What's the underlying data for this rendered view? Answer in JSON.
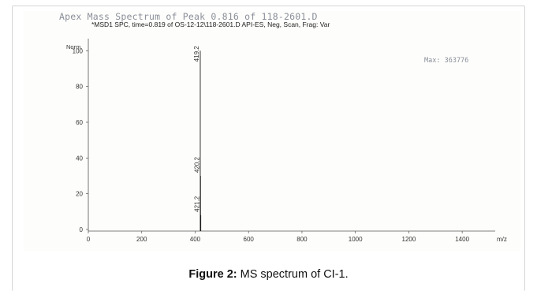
{
  "figure": {
    "apex_title": "Apex Mass Spectrum of Peak 0.816 of 118-2601.D",
    "scan_info": "*MSD1 SPC, time=0.819 of OS-12-12\\118-2601.D   API-ES, Neg, Scan, Frag: Var",
    "max_label": "Max: 363776",
    "caption_label": "Figure 2:",
    "caption_text": " MS spectrum of CI-1."
  },
  "chart_data": {
    "type": "bar",
    "title": "Apex Mass Spectrum of Peak 0.816 of 118-2601.D",
    "xlabel": "m/z",
    "ylabel": "Norm.",
    "xlim": [
      0,
      1500
    ],
    "ylim": [
      0,
      105
    ],
    "x_ticks": [
      0,
      200,
      400,
      600,
      800,
      1000,
      1200,
      1400
    ],
    "x_tick_labels": [
      "0",
      "200",
      "400",
      "600",
      "800",
      "1000",
      "1200",
      "1400"
    ],
    "x_unit_label": "m/z",
    "y_ticks": [
      0,
      20,
      40,
      60,
      80,
      100
    ],
    "y_tick_labels": [
      "0",
      "20",
      "40",
      "60",
      "80",
      "100"
    ],
    "peaks": [
      {
        "mz": 419.2,
        "label": "419.2",
        "intensity": 100
      },
      {
        "mz": 420.2,
        "label": "420.2",
        "intensity": 30
      },
      {
        "mz": 421.2,
        "label": "421.2",
        "intensity": 8
      }
    ],
    "grid": false,
    "colors": {
      "peak": "#1a1a1a",
      "axis": "#555555",
      "label": "#333333"
    }
  }
}
